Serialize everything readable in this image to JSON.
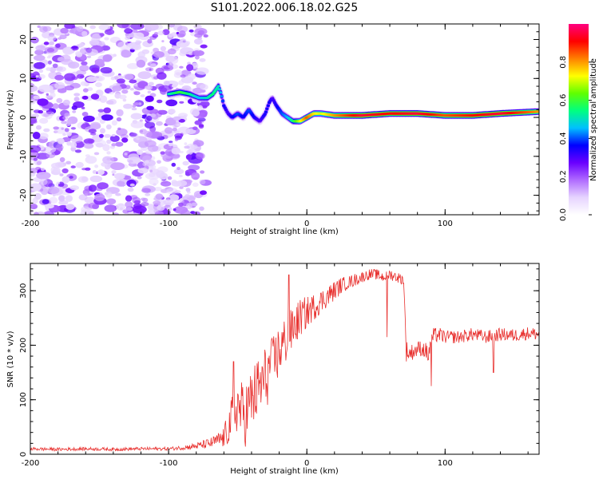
{
  "title": "S101.2022.006.18.02.G25",
  "chart_data": [
    {
      "type": "heatmap",
      "xlabel": "Height of straight line (km)",
      "ylabel": "Frequency (Hz)",
      "xlim": [
        -200,
        168
      ],
      "ylim": [
        -25,
        24
      ],
      "xticks": [
        -200,
        -100,
        0,
        100
      ],
      "yticks": [
        -20,
        -10,
        0,
        10,
        20
      ],
      "colorbar": {
        "label": "Normalized spectral amplitude",
        "ticks": [
          "0.0",
          "0.2",
          "0.4",
          "0.6",
          "0.8"
        ],
        "range": [
          0,
          1
        ],
        "colors": [
          "#ffffff",
          "#e6d4ff",
          "#b06bff",
          "#6a00ff",
          "#0000ff",
          "#00c0ff",
          "#00ff80",
          "#60ff00",
          "#ffff00",
          "#ff8000",
          "#ff0000",
          "#ff0080"
        ]
      },
      "noise_region": {
        "x": [
          -200,
          -73
        ],
        "y": [
          -25,
          24
        ]
      },
      "trace": {
        "x": [
          -100,
          -92,
          -85,
          -78,
          -72,
          -68,
          -64,
          -62,
          -60,
          -57,
          -54,
          -50,
          -46,
          -42,
          -38,
          -34,
          -30,
          -27,
          -25,
          -22,
          -18,
          -14,
          -10,
          -5,
          0,
          5,
          10,
          20,
          40,
          60,
          80,
          100,
          120,
          140,
          168
        ],
        "y": [
          6,
          6.5,
          6,
          5,
          5,
          6,
          8,
          6,
          3,
          1,
          0,
          1,
          0,
          2,
          0,
          -1,
          1,
          4,
          5,
          3,
          1,
          0,
          -1,
          -1,
          0,
          1,
          1,
          0.5,
          0.5,
          1,
          1,
          0.5,
          0.5,
          1,
          1.5
        ],
        "amplitude": [
          0.5,
          0.6,
          0.55,
          0.45,
          0.5,
          0.55,
          0.5,
          0.45,
          0.35,
          0.3,
          0.35,
          0.4,
          0.35,
          0.4,
          0.35,
          0.3,
          0.35,
          0.35,
          0.3,
          0.35,
          0.4,
          0.45,
          0.55,
          0.7,
          0.85,
          0.75,
          0.7,
          0.8,
          0.95,
          0.9,
          0.95,
          0.85,
          0.9,
          0.95,
          0.8
        ]
      }
    },
    {
      "type": "line",
      "xlabel": "Height of straight line (km)",
      "ylabel": "SNR (10 * v/v)",
      "xlim": [
        -200,
        168
      ],
      "ylim": [
        0,
        350
      ],
      "xticks": [
        -200,
        -100,
        0,
        100
      ],
      "yticks": [
        0,
        100,
        200,
        300
      ],
      "color": "#e8312f",
      "series": [
        {
          "x": [
            -200,
            -180,
            -160,
            -140,
            -120,
            -100,
            -90,
            -80,
            -70,
            -65,
            -60,
            -55,
            -50,
            -45,
            -40,
            -35,
            -30,
            -25,
            -20,
            -15,
            -10,
            -5,
            0,
            5,
            10,
            15,
            20,
            25,
            30,
            35,
            40,
            45,
            50,
            55,
            60,
            65,
            70,
            72,
            74,
            78,
            82,
            86,
            88,
            90,
            95,
            100,
            110,
            120,
            130,
            140,
            150,
            160,
            168
          ],
          "y": [
            10,
            9,
            10,
            9,
            10,
            10,
            12,
            15,
            20,
            25,
            30,
            60,
            90,
            70,
            100,
            120,
            140,
            160,
            190,
            210,
            230,
            250,
            260,
            270,
            280,
            290,
            300,
            310,
            315,
            320,
            325,
            330,
            330,
            325,
            330,
            325,
            320,
            190,
            185,
            190,
            195,
            190,
            180,
            215,
            220,
            215,
            215,
            220,
            215,
            220,
            218,
            222,
            220
          ],
          "noise": [
            3,
            3,
            3,
            3,
            3,
            3,
            4,
            6,
            10,
            12,
            20,
            40,
            50,
            60,
            60,
            60,
            60,
            55,
            50,
            45,
            40,
            35,
            30,
            25,
            22,
            20,
            18,
            15,
            12,
            12,
            10,
            10,
            10,
            10,
            10,
            10,
            10,
            20,
            15,
            15,
            15,
            15,
            20,
            15,
            14,
            12,
            12,
            12,
            12,
            12,
            12,
            12,
            12
          ]
        }
      ],
      "spikes": [
        {
          "x": -53,
          "y": 170
        },
        {
          "x": -26,
          "y": 195
        },
        {
          "x": -13,
          "y": 329
        },
        {
          "x": 58,
          "y": 215
        },
        {
          "x": 90,
          "y": 125
        },
        {
          "x": 135,
          "y": 150
        }
      ]
    }
  ]
}
